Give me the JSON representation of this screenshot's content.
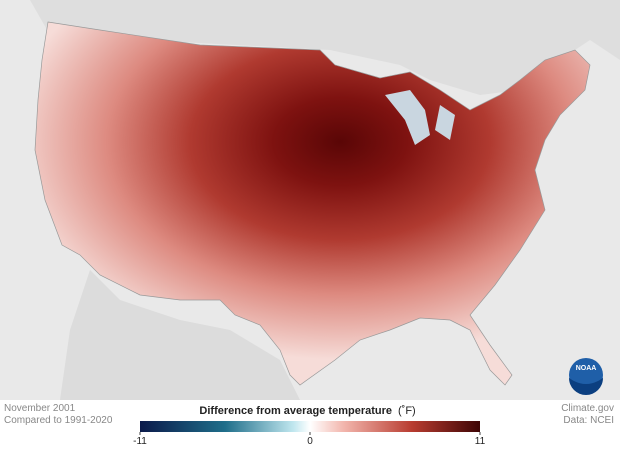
{
  "map": {
    "date": "November 2001",
    "baseline": "Compared to 1991-2020",
    "credit": "Climate.gov",
    "source": "Data: NCEI",
    "logo": "NOAA"
  },
  "legend": {
    "title": "Difference from average temperature",
    "unit": "(˚F)",
    "range": [
      -11,
      11
    ],
    "ticks": [
      -11,
      0,
      11
    ]
  }
}
